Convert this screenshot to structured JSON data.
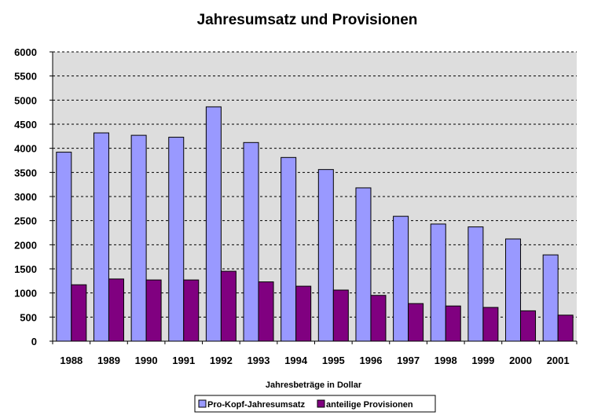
{
  "chart_data": {
    "type": "bar",
    "title": "Jahresumsatz und Provisionen",
    "xlabel": "Jahresbeträge in Dollar",
    "ylabel": "",
    "ylim": [
      0,
      6000
    ],
    "yticks": [
      0,
      500,
      1000,
      1500,
      2000,
      2500,
      3000,
      3500,
      4000,
      4500,
      5000,
      5500,
      6000
    ],
    "grid": true,
    "legend_position": "bottom",
    "plot_background": "#dddddd",
    "categories": [
      "1988",
      "1989",
      "1990",
      "1991",
      "1992",
      "1993",
      "1994",
      "1995",
      "1996",
      "1997",
      "1998",
      "1999",
      "2000",
      "2001"
    ],
    "series": [
      {
        "name": "Pro-Kopf-Jahresumsatz",
        "color": "#9999ff",
        "values": [
          3920,
          4320,
          4270,
          4230,
          4860,
          4120,
          3810,
          3560,
          3180,
          2590,
          2430,
          2370,
          2120,
          1790
        ]
      },
      {
        "name": "anteilige Provisionen",
        "color": "#800080",
        "values": [
          1170,
          1290,
          1270,
          1270,
          1450,
          1230,
          1140,
          1060,
          950,
          780,
          730,
          700,
          630,
          540
        ]
      }
    ]
  }
}
